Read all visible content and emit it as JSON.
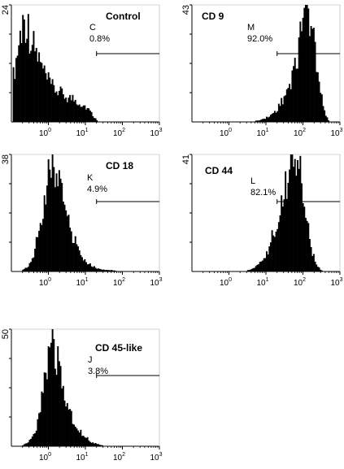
{
  "chart_data": [
    {
      "type": "area",
      "title": "Control",
      "y_max_label": "24",
      "x_scale": "log",
      "x_ticks": [
        {
          "base": "10",
          "exp": "0"
        },
        {
          "base": "10",
          "exp": "1"
        },
        {
          "base": "10",
          "exp": "2"
        },
        {
          "base": "10",
          "exp": "3"
        }
      ],
      "gate": {
        "letter": "C",
        "percent": "0.8%",
        "from": 20,
        "to": 1000
      },
      "histogram": {
        "x": [
          0.11,
          0.14,
          0.18,
          0.22,
          0.28,
          0.35,
          0.45,
          0.56,
          0.7,
          0.9,
          1.1,
          1.4,
          1.8,
          2.2,
          2.8,
          3.5,
          4.5,
          5.6,
          7,
          9,
          11,
          14,
          18,
          22
        ],
        "y": [
          9,
          14,
          19,
          22,
          20,
          17,
          15,
          13,
          11,
          9,
          8,
          7,
          6.5,
          6,
          5.5,
          5,
          5,
          4.5,
          4,
          3.5,
          3,
          2,
          0.8,
          0.2
        ]
      }
    },
    {
      "type": "area",
      "title": "CD 9",
      "y_max_label": "43",
      "x_scale": "log",
      "x_ticks": [
        {
          "base": "10",
          "exp": "0"
        },
        {
          "base": "10",
          "exp": "1"
        },
        {
          "base": "10",
          "exp": "2"
        },
        {
          "base": "10",
          "exp": "3"
        }
      ],
      "gate": {
        "letter": "M",
        "percent": "92.0%",
        "from": 20,
        "to": 1000
      },
      "histogram": {
        "x": [
          5,
          8,
          12,
          18,
          25,
          35,
          50,
          70,
          90,
          110,
          130,
          160,
          200,
          250,
          320,
          400,
          500
        ],
        "y": [
          0.3,
          1,
          2,
          4,
          7,
          11,
          17,
          25,
          34,
          40,
          42,
          38,
          30,
          20,
          10,
          3,
          0.5
        ]
      }
    },
    {
      "type": "area",
      "title": "CD 18",
      "y_max_label": "38",
      "x_scale": "log",
      "x_ticks": [
        {
          "base": "10",
          "exp": "0"
        },
        {
          "base": "10",
          "exp": "1"
        },
        {
          "base": "10",
          "exp": "2"
        },
        {
          "base": "10",
          "exp": "3"
        }
      ],
      "gate": {
        "letter": "K",
        "percent": "4.9%",
        "from": 20,
        "to": 1000
      },
      "histogram": {
        "x": [
          0.2,
          0.3,
          0.4,
          0.55,
          0.7,
          0.9,
          1.1,
          1.4,
          1.8,
          2.2,
          2.8,
          3.5,
          4.5,
          6,
          8,
          11,
          15,
          20,
          30,
          50,
          70
        ],
        "y": [
          0.5,
          2,
          6,
          13,
          21,
          29,
          35,
          37,
          33,
          27,
          21,
          16,
          12,
          8,
          5,
          3,
          2,
          1,
          0.6,
          0.5,
          0.2
        ]
      }
    },
    {
      "type": "area",
      "title": "CD 44",
      "y_max_label": "41",
      "x_scale": "log",
      "x_ticks": [
        {
          "base": "10",
          "exp": "0"
        },
        {
          "base": "10",
          "exp": "1"
        },
        {
          "base": "10",
          "exp": "2"
        },
        {
          "base": "10",
          "exp": "3"
        }
      ],
      "gate": {
        "letter": "L",
        "percent": "82.1%",
        "from": 20,
        "to": 1000
      },
      "histogram": {
        "x": [
          3,
          5,
          8,
          12,
          16,
          22,
          30,
          40,
          50,
          65,
          80,
          100,
          130,
          170,
          220,
          280,
          350
        ],
        "y": [
          0.3,
          1.5,
          4,
          8,
          14,
          21,
          29,
          35,
          39,
          40,
          36,
          28,
          17,
          8,
          3,
          1,
          0.2
        ]
      }
    },
    {
      "type": "area",
      "title": "CD 45-like",
      "y_max_label": "50",
      "x_scale": "log",
      "x_ticks": [
        {
          "base": "10",
          "exp": "0"
        },
        {
          "base": "10",
          "exp": "1"
        },
        {
          "base": "10",
          "exp": "2"
        },
        {
          "base": "10",
          "exp": "3"
        }
      ],
      "gate": {
        "letter": "J",
        "percent": "3.8%",
        "from": 20,
        "to": 1000
      },
      "histogram": {
        "x": [
          0.2,
          0.3,
          0.45,
          0.6,
          0.8,
          1,
          1.2,
          1.5,
          1.9,
          2.4,
          3,
          4,
          5,
          7,
          10,
          14,
          20,
          30
        ],
        "y": [
          0.5,
          2,
          6,
          15,
          30,
          42,
          47,
          44,
          36,
          27,
          20,
          14,
          10,
          7,
          4,
          2,
          1,
          0.3
        ]
      }
    }
  ]
}
